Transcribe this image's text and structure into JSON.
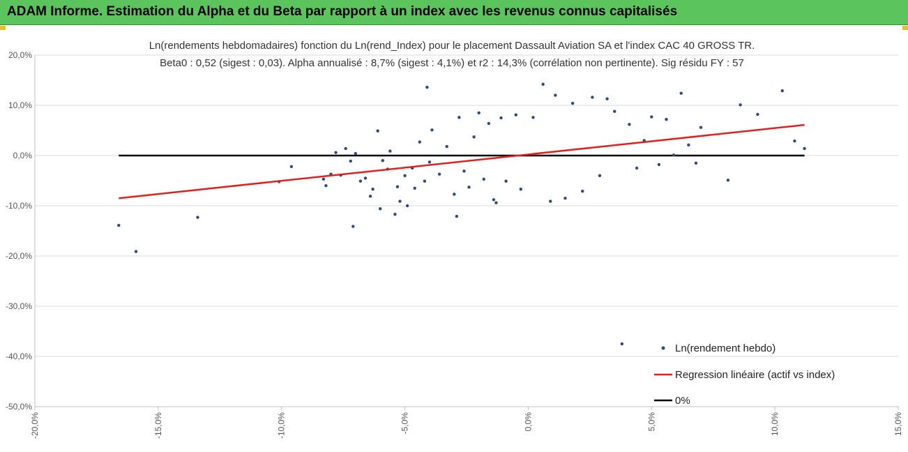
{
  "header": {
    "title": "ADAM Informe. Estimation du Alpha et du Beta par rapport à un index avec les revenus connus capitalisés",
    "accent": "#5cc45c"
  },
  "chart_data": {
    "type": "scatter",
    "title_line1": "Ln(rendements hebdomadaires) fonction du Ln(rend_Index) pour le placement Dassault Aviation SA et l'index CAC 40 GROSS TR.",
    "title_line2": "Beta0 : 0,52 (sigest : 0,03).  Alpha annualisé : 8,7% (sigest : 4,1%) et r2 : 14,3% (corrélation non pertinente). Sig résidu FY : 57",
    "xlim": [
      -20,
      15
    ],
    "ylim": [
      -50,
      20
    ],
    "x_ticks": [
      "-20,0%",
      "-15,0%",
      "-10,0%",
      "-5,0%",
      "0,0%",
      "5,0%",
      "10,0%",
      "15,0%"
    ],
    "y_ticks": [
      "20,0%",
      "10,0%",
      "0,0%",
      "-10,0%",
      "-20,0%",
      "-30,0%",
      "-40,0%",
      "-50,0%"
    ],
    "grid": "horizontal",
    "legend_position": "bottom-right",
    "series": [
      {
        "name": "Ln(rendement hebdo)",
        "kind": "scatter",
        "color": "#2e4a7a",
        "points": [
          [
            -16.6,
            -13.9
          ],
          [
            -15.9,
            -19.1
          ],
          [
            -13.4,
            -12.3
          ],
          [
            -10.1,
            -5.2
          ],
          [
            -9.6,
            -2.2
          ],
          [
            -8.3,
            -4.7
          ],
          [
            -8.2,
            -6.0
          ],
          [
            -8.0,
            -3.7
          ],
          [
            -7.8,
            0.6
          ],
          [
            -7.6,
            -3.9
          ],
          [
            -7.4,
            1.4
          ],
          [
            -7.2,
            -1.1
          ],
          [
            -7.1,
            -14.1
          ],
          [
            -7.0,
            0.4
          ],
          [
            -6.8,
            -5.1
          ],
          [
            -6.6,
            -4.5
          ],
          [
            -6.4,
            -8.1
          ],
          [
            -6.3,
            -6.7
          ],
          [
            -6.1,
            4.9
          ],
          [
            -6.0,
            -10.6
          ],
          [
            -5.9,
            -1.0
          ],
          [
            -5.7,
            -2.7
          ],
          [
            -5.6,
            0.9
          ],
          [
            -5.4,
            -11.7
          ],
          [
            -5.3,
            -6.2
          ],
          [
            -5.2,
            -9.1
          ],
          [
            -5.0,
            -4.0
          ],
          [
            -4.9,
            -10.0
          ],
          [
            -4.7,
            -2.5
          ],
          [
            -4.6,
            -6.5
          ],
          [
            -4.4,
            2.7
          ],
          [
            -4.2,
            -5.1
          ],
          [
            -4.1,
            13.6
          ],
          [
            -4.0,
            -1.3
          ],
          [
            -3.9,
            5.1
          ],
          [
            -3.6,
            -3.7
          ],
          [
            -3.3,
            1.8
          ],
          [
            -3.0,
            -7.7
          ],
          [
            -2.9,
            -12.1
          ],
          [
            -2.8,
            7.6
          ],
          [
            -2.6,
            -3.1
          ],
          [
            -2.4,
            -6.3
          ],
          [
            -2.2,
            3.7
          ],
          [
            -2.0,
            8.5
          ],
          [
            -1.8,
            -4.7
          ],
          [
            -1.6,
            6.4
          ],
          [
            -1.4,
            -8.8
          ],
          [
            -1.3,
            -9.4
          ],
          [
            -1.1,
            7.5
          ],
          [
            -0.9,
            -5.1
          ],
          [
            -0.5,
            8.1
          ],
          [
            -0.3,
            -6.7
          ],
          [
            0.2,
            7.6
          ],
          [
            0.6,
            14.2
          ],
          [
            0.9,
            -9.1
          ],
          [
            1.1,
            12.0
          ],
          [
            1.5,
            -8.5
          ],
          [
            1.8,
            10.4
          ],
          [
            2.2,
            -7.1
          ],
          [
            2.6,
            11.6
          ],
          [
            2.9,
            -4.0
          ],
          [
            3.2,
            11.3
          ],
          [
            3.5,
            8.8
          ],
          [
            3.8,
            -37.5
          ],
          [
            4.1,
            6.2
          ],
          [
            4.4,
            -2.5
          ],
          [
            4.7,
            3.0
          ],
          [
            5.0,
            7.7
          ],
          [
            5.3,
            -1.8
          ],
          [
            5.6,
            7.2
          ],
          [
            5.9,
            0.1
          ],
          [
            6.2,
            12.4
          ],
          [
            6.5,
            2.1
          ],
          [
            6.8,
            -1.5
          ],
          [
            7.0,
            5.6
          ],
          [
            8.1,
            -4.9
          ],
          [
            8.6,
            10.1
          ],
          [
            9.3,
            8.2
          ],
          [
            10.3,
            12.9
          ],
          [
            10.8,
            2.9
          ],
          [
            11.2,
            1.4
          ]
        ]
      },
      {
        "name": "Regression linéaire (actif vs index)",
        "kind": "line",
        "color": "#e02020",
        "points": [
          [
            -16.6,
            -8.5
          ],
          [
            11.2,
            6.1
          ]
        ]
      },
      {
        "name": "0%",
        "kind": "line",
        "color": "#000000",
        "points": [
          [
            -16.6,
            0
          ],
          [
            11.2,
            0
          ]
        ]
      }
    ]
  }
}
